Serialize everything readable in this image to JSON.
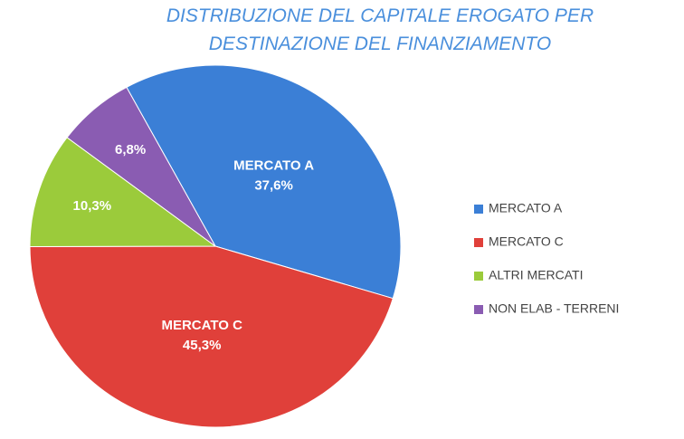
{
  "chart_data": {
    "type": "pie",
    "title": "DISTRIBUZIONE DEL CAPITALE EROGATO PER DESTINAZIONE DEL FINANZIAMENTO",
    "categories": [
      "MERCATO A",
      "MERCATO C",
      "ALTRI MERCATI",
      "NON ELAB - TERRENI"
    ],
    "values": [
      37.6,
      45.3,
      10.3,
      6.8
    ],
    "value_labels": [
      "37,6%",
      "45,3%",
      "10,3%",
      "6,8%"
    ],
    "colors": [
      "#3b7fd6",
      "#e0403a",
      "#9bcb3b",
      "#8a5cb2"
    ],
    "legend": "right"
  }
}
